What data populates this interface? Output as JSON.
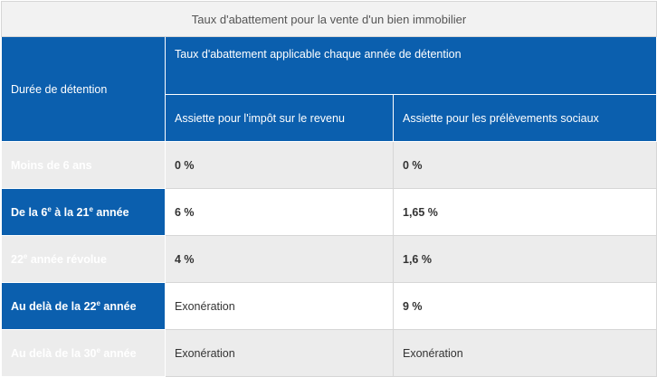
{
  "caption": "Taux d'abattement pour la vente d'un bien immobilier",
  "header": {
    "row_header": "Durée de détention",
    "group": "Taux d'abattement applicable chaque année de détention",
    "columns": [
      "Assiette pour l'impôt sur le revenu",
      "Assiette pour les prélèvements sociaux"
    ]
  },
  "table": {
    "rows": [
      {
        "label": [
          "Moins de 6 ans"
        ],
        "cells": [
          "0 %",
          "0 %"
        ]
      },
      {
        "label": [
          "De la 6",
          "e",
          " à la 21",
          "e",
          " année"
        ],
        "cells": [
          "6 %",
          "1,65 %"
        ]
      },
      {
        "label": [
          "22",
          "e",
          " année révolue"
        ],
        "cells": [
          "4 %",
          "1,6 %"
        ]
      },
      {
        "label": [
          "Au delà de la 22",
          "e",
          " année"
        ],
        "cells": [
          "Exonération",
          "9 %"
        ]
      },
      {
        "label": [
          "Au delà de la 30",
          "e",
          " année"
        ],
        "cells": [
          "Exonération",
          "Exonération"
        ]
      }
    ]
  }
}
